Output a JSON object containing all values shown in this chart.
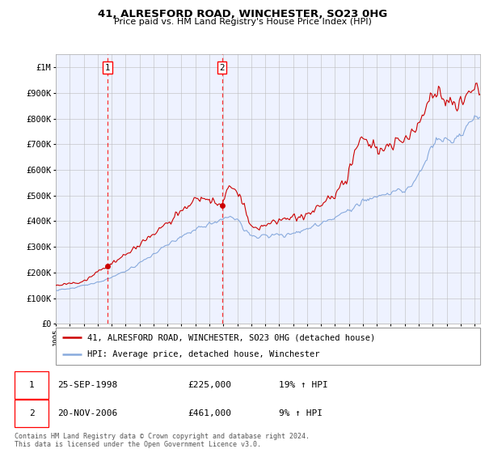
{
  "title": "41, ALRESFORD ROAD, WINCHESTER, SO23 0HG",
  "subtitle": "Price paid vs. HM Land Registry's House Price Index (HPI)",
  "ylim": [
    0,
    1050000
  ],
  "yticks": [
    0,
    100000,
    200000,
    300000,
    400000,
    500000,
    600000,
    700000,
    800000,
    900000,
    1000000
  ],
  "ytick_labels": [
    "£0",
    "£100K",
    "£200K",
    "£300K",
    "£400K",
    "£500K",
    "£600K",
    "£700K",
    "£800K",
    "£900K",
    "£1M"
  ],
  "xlim_start": 1995.0,
  "xlim_end": 2025.4,
  "transaction1_x": 1998.73,
  "transaction1_y": 225000,
  "transaction2_x": 2006.9,
  "transaction2_y": 461000,
  "red_line_color": "#cc0000",
  "blue_line_color": "#88aadd",
  "plot_bg_color": "#eef2ff",
  "grid_color": "#bbbbbb",
  "legend1": "41, ALRESFORD ROAD, WINCHESTER, SO23 0HG (detached house)",
  "legend2": "HPI: Average price, detached house, Winchester",
  "transaction1_date": "25-SEP-1998",
  "transaction1_price": "£225,000",
  "transaction1_hpi": "19% ↑ HPI",
  "transaction2_date": "20-NOV-2006",
  "transaction2_price": "£461,000",
  "transaction2_hpi": "9% ↑ HPI",
  "footer": "Contains HM Land Registry data © Crown copyright and database right 2024.\nThis data is licensed under the Open Government Licence v3.0."
}
